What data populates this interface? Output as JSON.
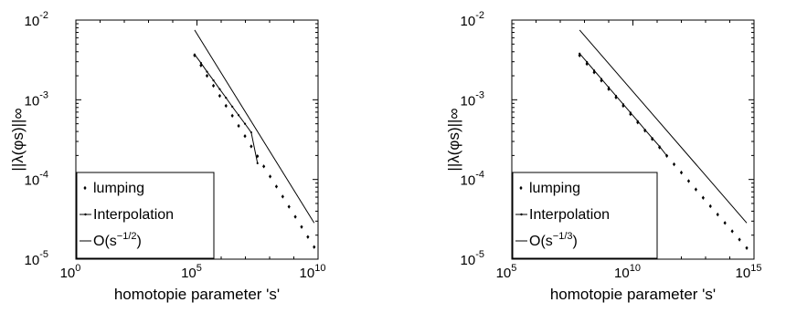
{
  "chart_data": [
    {
      "type": "scatter",
      "title": "",
      "xlabel": "homotopie parameter 's'",
      "ylabel": "||λ(φs)||∞",
      "x_scale": "log",
      "y_scale": "log",
      "xlim": [
        1,
        10000000000
      ],
      "ylim": [
        1e-05,
        0.01
      ],
      "x_ticks": [
        1,
        100000,
        10000000000
      ],
      "x_tick_labels": [
        {
          "base": "10",
          "exp": "0"
        },
        {
          "base": "10",
          "exp": "5"
        },
        {
          "base": "10",
          "exp": "10"
        }
      ],
      "y_ticks": [
        1e-05,
        0.0001,
        0.001,
        0.01
      ],
      "y_tick_labels": [
        {
          "base": "10",
          "exp": "-5"
        },
        {
          "base": "10",
          "exp": "-4"
        },
        {
          "base": "10",
          "exp": "-3"
        },
        {
          "base": "10",
          "exp": "-2"
        }
      ],
      "grid": false,
      "legend_position": "bottom-left",
      "legend": [
        {
          "label": "lumping",
          "sup": ""
        },
        {
          "label": "Interpolation",
          "sup": ""
        },
        {
          "label": "O(s",
          "sup": "−1/2",
          "suffix": ")"
        }
      ],
      "series": [
        {
          "marker": "dot",
          "x": [
            80000,
            146000,
            260000,
            480000,
            870000,
            1580000,
            2880000,
            5250000,
            9600000,
            17400000,
            31600000,
            57500000,
            105000000,
            191000000,
            347000000,
            631000000,
            1150000000,
            2090000000,
            3800000000,
            6900000000
          ],
          "y": [
            0.0036,
            0.0027,
            0.002,
            0.0015,
            0.00112,
            0.00084,
            0.00063,
            0.00047,
            0.00035,
            0.00026,
            0.000196,
            0.000146,
            0.000109,
            8.15e-05,
            6.1e-05,
            4.55e-05,
            3.4e-05,
            2.54e-05,
            1.9e-05,
            1.42e-05
          ]
        },
        {
          "marker": "line-dot",
          "x": [
            80000,
            146000,
            260000,
            480000,
            870000,
            1580000,
            2880000,
            5250000,
            9600000,
            17400000,
            31600000
          ],
          "y": [
            0.0037,
            0.0029,
            0.00225,
            0.00175,
            0.00136,
            0.00106,
            0.00082,
            0.00064,
            0.0005,
            0.00039,
            0.00016
          ]
        },
        {
          "marker": "line",
          "x": [
            80000,
            6900000000
          ],
          "y": [
            0.0075,
            2.85e-05
          ]
        }
      ]
    },
    {
      "type": "scatter",
      "title": "",
      "xlabel": "homotopie parameter 's'",
      "ylabel": "||λ(φs)||∞",
      "x_scale": "log",
      "y_scale": "log",
      "xlim": [
        100000,
        1000000000000000
      ],
      "ylim": [
        1e-05,
        0.01
      ],
      "x_ticks": [
        100000,
        10000000000,
        1000000000000000
      ],
      "x_tick_labels": [
        {
          "base": "10",
          "exp": "5"
        },
        {
          "base": "10",
          "exp": "10"
        },
        {
          "base": "10",
          "exp": "15"
        }
      ],
      "y_ticks": [
        1e-05,
        0.0001,
        0.001,
        0.01
      ],
      "y_tick_labels": [
        {
          "base": "10",
          "exp": "-5"
        },
        {
          "base": "10",
          "exp": "-4"
        },
        {
          "base": "10",
          "exp": "-3"
        },
        {
          "base": "10",
          "exp": "-2"
        }
      ],
      "grid": false,
      "legend_position": "bottom-left",
      "legend": [
        {
          "label": "lumping",
          "sup": ""
        },
        {
          "label": "Interpolation",
          "sup": ""
        },
        {
          "label": "O(s",
          "sup": "−1/3",
          "suffix": ")"
        }
      ],
      "series": [
        {
          "marker": "dot",
          "x": [
            63000000,
            126000000,
            251000000,
            500000000,
            1000000000,
            2000000000,
            3980000000,
            7940000000,
            15800000000,
            31600000000,
            63000000000,
            126000000000,
            251000000000,
            500000000000,
            1000000000000,
            2000000000000,
            3980000000000,
            7940000000000,
            15800000000000,
            31600000000000,
            63000000000000,
            126000000000000,
            251000000000000,
            500000000000000
          ],
          "y": [
            0.0036,
            0.00282,
            0.00221,
            0.00174,
            0.00136,
            0.00107,
            0.00084,
            0.00066,
            0.00052,
            0.00041,
            0.000321,
            0.000252,
            0.000198,
            0.000155,
            0.000122,
            9.55e-05,
            7.5e-05,
            5.89e-05,
            4.62e-05,
            3.63e-05,
            2.85e-05,
            2.24e-05,
            1.76e-05,
            1.38e-05
          ]
        },
        {
          "marker": "line-dot",
          "x": [
            63000000,
            126000000,
            251000000,
            500000000,
            1000000000,
            2000000000,
            3980000000,
            7940000000,
            15800000000,
            31600000000,
            63000000000,
            126000000000,
            251000000000
          ],
          "y": [
            0.0038,
            0.00298,
            0.00233,
            0.00183,
            0.00143,
            0.00112,
            0.00088,
            0.00069,
            0.00054,
            0.00042,
            0.00033,
            0.00026,
            0.000198
          ]
        },
        {
          "marker": "line",
          "x": [
            63000000,
            500000000000000
          ],
          "y": [
            0.0075,
            2.85e-05
          ]
        }
      ]
    }
  ]
}
